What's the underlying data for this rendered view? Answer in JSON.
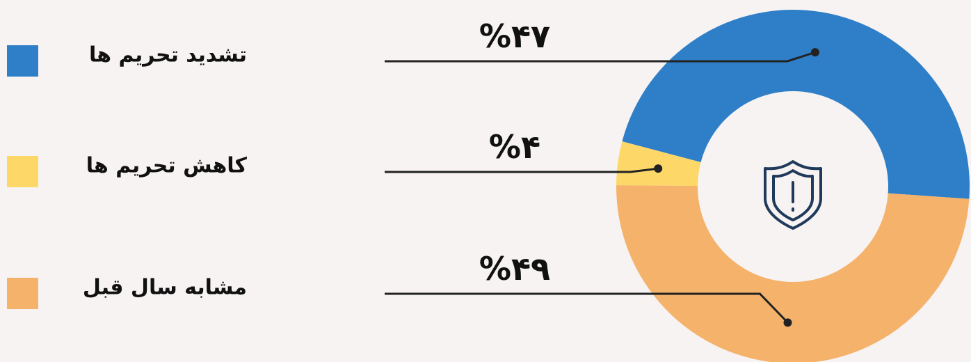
{
  "chart_data": {
    "type": "pie",
    "donut": true,
    "categories": [
      "تشدید تحریم ها",
      "کاهش تحریم ها",
      "مشابه سال قبل"
    ],
    "values": [
      47,
      4,
      49
    ],
    "value_labels": [
      "%۴۷",
      "%۴",
      "%۴۹"
    ],
    "colors": [
      "#2e7ec8",
      "#fdd868",
      "#f5b26b"
    ]
  }
}
